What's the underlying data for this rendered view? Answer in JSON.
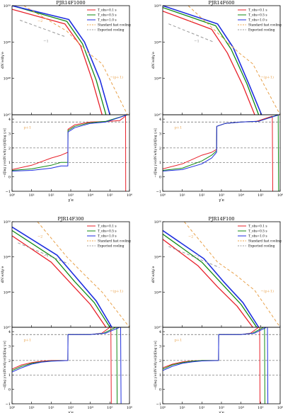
{
  "figure": {
    "tick_labels": {
      "upper_y": [
        "10⁵⁰",
        "10⁴⁹",
        "10⁴⁸",
        "10⁴⁷"
      ],
      "lower_y": [
        "4",
        "3",
        "2",
        "1",
        "0",
        "−1"
      ],
      "x": [
        "10⁰",
        "10¹",
        "10²",
        "10³",
        "10⁴",
        "10⁵",
        "10⁶"
      ]
    },
    "legend": [
      {
        "label": "T_obs=0.1 s",
        "color": "#e8202a",
        "style": "solid"
      },
      {
        "label": "T_obs=0.5 s",
        "color": "#138a13",
        "style": "solid"
      },
      {
        "label": "T_obs=1.0 s",
        "color": "#1f2fe0",
        "style": "solid"
      },
      {
        "label": "Standard fast cooling",
        "color": "#e8a14a",
        "style": "dashed"
      },
      {
        "label": "Expected cooling",
        "color": "#999999",
        "style": "dashed"
      }
    ],
    "panels": [
      {
        "title": "PJR14F1000",
        "legend_visible": true,
        "ann_upper": [
          "−2",
          "−1",
          "−(p+1)"
        ],
        "ann_lower": [
          "p+1"
        ]
      },
      {
        "title": "PJR14F600",
        "legend_visible": true,
        "ann_upper": [
          "−2",
          "−1",
          "−(p+1)"
        ],
        "ann_lower": [
          "p+1"
        ]
      },
      {
        "title": "PJR14F300",
        "legend_visible": true,
        "ann_upper": [
          "−2",
          "−1",
          "−(p+1)"
        ],
        "ann_lower": [
          "p+1"
        ]
      },
      {
        "title": "PJR14F100",
        "legend_visible": true,
        "ann_upper": [
          "−2",
          "−1",
          "−(p+1)"
        ],
        "ann_lower": [
          "p+1"
        ]
      }
    ]
  },
  "chart_data": [
    {
      "type": "line",
      "panel": "PJR14F1000",
      "upper": {
        "ylabel": "dN′e/dγ′e",
        "yscale": "log",
        "ylim_log10": [
          47,
          50
        ],
        "series": [
          {
            "name": "T_obs=0.1 s",
            "color": "#e8202a",
            "dash": "",
            "width": 1.3,
            "x": [
              0,
              2.7,
              3.5,
              4.1,
              4.6
            ],
            "y": [
              49.9,
              49.5,
              48.9,
              47.95,
              47
            ]
          },
          {
            "name": "T_obs=0.5 s",
            "color": "#138a13",
            "dash": "",
            "width": 1.3,
            "x": [
              0,
              2.8,
              3.6,
              4.3,
              4.8
            ],
            "y": [
              50,
              49.57,
              48.95,
              47.95,
              47
            ]
          },
          {
            "name": "T_obs=1.0 s",
            "color": "#1f2fe0",
            "dash": "",
            "width": 1.6,
            "x": [
              0,
              2.9,
              3.7,
              4.5,
              5.0
            ],
            "y": [
              50,
              49.62,
              49.0,
              47.95,
              47
            ]
          },
          {
            "name": "Standard fast cooling",
            "color": "#e8a14a",
            "dash": "4,3",
            "width": 1,
            "x": [
              0.6,
              2.8,
              3.8,
              4.6,
              5.9
            ],
            "y": [
              50,
              49.3,
              48.75,
              48.4,
              47
            ]
          },
          {
            "name": "Expected cooling",
            "color": "#999999",
            "dash": "4,3",
            "width": 1,
            "x": [
              0.4,
              2.7
            ],
            "y": [
              49.6,
              49.15
            ]
          }
        ]
      },
      "lower": {
        "ylabel": "−d[log γ′e(dN′e/dγ′e)]/d[log γ′e]",
        "xlabel": "γ′e",
        "ylim": [
          -1,
          4.3
        ],
        "hlines": [
          3.8,
          2.0,
          1.0
        ],
        "series": [
          {
            "name": "T_obs=0.1 s",
            "color": "#e8202a",
            "dash": "",
            "width": 1,
            "x": [
              0,
              1,
              2,
              2.5,
              2.85,
              2.86,
              3.2,
              4,
              4.7,
              5.5,
              5.8,
              5.81
            ],
            "y": [
              0.5,
              0.8,
              1.3,
              1.5,
              1.7,
              3.3,
              3.6,
              3.8,
              3.83,
              3.9,
              4.2,
              -1
            ]
          },
          {
            "name": "T_obs=0.5 s",
            "color": "#138a13",
            "dash": "",
            "width": 1,
            "x": [
              0,
              1,
              2,
              2.5,
              2.85,
              2.86,
              3.2,
              4,
              4.8,
              5.9,
              5.95
            ],
            "y": [
              0.45,
              0.55,
              0.8,
              1.0,
              1.0,
              3.2,
              3.5,
              3.75,
              3.85,
              4.3,
              4.3
            ]
          },
          {
            "name": "T_obs=1.0 s",
            "color": "#1f2fe0",
            "dash": "",
            "width": 1,
            "x": [
              0,
              1,
              2,
              2.5,
              2.85,
              2.86,
              3.2,
              4,
              4.8,
              5.9,
              5.95
            ],
            "y": [
              0.4,
              0.45,
              0.6,
              0.75,
              0.75,
              3.1,
              3.4,
              3.7,
              3.8,
              4.3,
              4.3
            ]
          }
        ]
      }
    },
    {
      "type": "line",
      "panel": "PJR14F600",
      "upper": {
        "ylabel": "dN′e/dγ′e",
        "yscale": "log",
        "ylim_log10": [
          47,
          50
        ],
        "series": [
          {
            "name": "T_obs=0.1 s",
            "color": "#e8202a",
            "dash": "",
            "width": 1.3,
            "x": [
              0,
              2.5,
              3.3,
              4.1,
              4.7
            ],
            "y": [
              49.85,
              49.35,
              48.7,
              47.8,
              47
            ]
          },
          {
            "name": "T_obs=0.5 s",
            "color": "#138a13",
            "dash": "",
            "width": 1.3,
            "x": [
              0,
              2.7,
              3.5,
              4.3,
              4.9
            ],
            "y": [
              49.95,
              49.45,
              48.8,
              47.85,
              47
            ]
          },
          {
            "name": "T_obs=1.0 s",
            "color": "#1f2fe0",
            "dash": "",
            "width": 1.6,
            "x": [
              0,
              2.8,
              3.6,
              4.4,
              5.05
            ],
            "y": [
              50,
              49.5,
              48.85,
              47.85,
              47
            ]
          },
          {
            "name": "Standard fast cooling",
            "color": "#e8a14a",
            "dash": "4,3",
            "width": 1,
            "x": [
              1.3,
              2.8,
              3.9,
              4.6,
              6.0
            ],
            "y": [
              50,
              49.25,
              48.7,
              48.4,
              47
            ]
          },
          {
            "name": "Expected cooling",
            "color": "#999999",
            "dash": "4,3",
            "width": 1,
            "x": [
              0.3,
              2.6
            ],
            "y": [
              49.5,
              49.0
            ]
          }
        ]
      },
      "lower": {
        "ylabel": "−d[log γ′e(dN′e/dγ′e)]/d[log γ′e]",
        "xlabel": "γ′e",
        "ylim": [
          -1,
          4.3
        ],
        "hlines": [
          3.8,
          2.0,
          1.0
        ],
        "series": [
          {
            "name": "T_obs=0.1 s",
            "color": "#e8202a",
            "dash": "",
            "width": 1,
            "x": [
              0,
              1,
              2,
              2.5,
              2.75,
              2.76,
              3.2,
              4,
              4.8,
              5.6,
              5.62
            ],
            "y": [
              0.55,
              0.9,
              1.5,
              1.7,
              1.9,
              3.5,
              3.7,
              3.8,
              3.85,
              4.2,
              -1
            ]
          },
          {
            "name": "T_obs=0.5 s",
            "color": "#138a13",
            "dash": "",
            "width": 1,
            "x": [
              0,
              1,
              2,
              2.5,
              2.75,
              2.76,
              3.2,
              4,
              4.9,
              5.9,
              5.92
            ],
            "y": [
              0.45,
              0.6,
              1.1,
              1.5,
              1.8,
              3.5,
              3.7,
              3.8,
              3.85,
              4.3,
              -1
            ]
          },
          {
            "name": "T_obs=1.0 s",
            "color": "#1f2fe0",
            "dash": "",
            "width": 1,
            "x": [
              0,
              1,
              2,
              2.5,
              2.75,
              2.76,
              3.2,
              4,
              4.9,
              5.95
            ],
            "y": [
              0.4,
              0.5,
              0.9,
              1.3,
              1.7,
              3.5,
              3.7,
              3.8,
              3.85,
              4.3
            ]
          }
        ]
      }
    },
    {
      "type": "line",
      "panel": "PJR14F300",
      "upper": {
        "ylabel": "dN′e/dγ′e",
        "yscale": "log",
        "ylim_log10": [
          47,
          50
        ],
        "series": [
          {
            "name": "T_obs=0.1 s",
            "color": "#e8202a",
            "dash": "",
            "width": 1.3,
            "x": [
              0,
              2.0,
              3.0,
              4.0,
              4.8
            ],
            "y": [
              49.6,
              48.85,
              48.25,
              47.65,
              47
            ]
          },
          {
            "name": "T_obs=0.5 s",
            "color": "#138a13",
            "dash": "",
            "width": 1.3,
            "x": [
              0,
              2.2,
              3.2,
              4.2,
              5.0
            ],
            "y": [
              49.75,
              48.95,
              48.3,
              47.7,
              47
            ]
          },
          {
            "name": "T_obs=1.0 s",
            "color": "#1f2fe0",
            "dash": "",
            "width": 1.6,
            "x": [
              0,
              2.3,
              3.3,
              4.3,
              5.1
            ],
            "y": [
              49.85,
              49.05,
              48.4,
              47.75,
              47
            ]
          },
          {
            "name": "Standard fast cooling",
            "color": "#e8a14a",
            "dash": "4,3",
            "width": 1,
            "x": [
              1.3,
              2.8,
              3.6,
              4.6,
              6.0
            ],
            "y": [
              50,
              49.0,
              48.55,
              48.0,
              47
            ]
          },
          {
            "name": "Expected cooling",
            "color": "#999999",
            "dash": "4,3",
            "width": 1,
            "x": [
              0.3,
              2.9
            ],
            "y": [
              49.4,
              48.8
            ]
          }
        ]
      },
      "lower": {
        "ylabel": "−d[log γ′e(dN′e/dγ′e)]/d[log γ′e]",
        "xlabel": "γ′e",
        "ylim": [
          -1,
          4.3
        ],
        "hlines": [
          3.8,
          2.0,
          1.0
        ],
        "series": [
          {
            "name": "T_obs=0.1 s",
            "color": "#e8202a",
            "dash": "",
            "width": 1,
            "x": [
              0,
              0.5,
              1,
              1.5,
              2.0,
              2.85,
              2.86,
              4.0,
              4.6,
              5.0,
              5.05,
              5.07
            ],
            "y": [
              1.4,
              1.7,
              1.85,
              1.95,
              2.0,
              2.0,
              3.8,
              3.8,
              3.9,
              4.3,
              4.3,
              -1
            ]
          },
          {
            "name": "T_obs=0.5 s",
            "color": "#138a13",
            "dash": "",
            "width": 1,
            "x": [
              0,
              0.5,
              1,
              1.5,
              2.0,
              2.85,
              2.86,
              4.0,
              4.7,
              5.3,
              5.35,
              5.37
            ],
            "y": [
              1.3,
              1.6,
              1.8,
              1.9,
              1.97,
              2.0,
              3.8,
              3.8,
              3.9,
              4.3,
              4.3,
              -1
            ]
          },
          {
            "name": "T_obs=1.0 s",
            "color": "#1f2fe0",
            "dash": "",
            "width": 1,
            "x": [
              0,
              0.5,
              1,
              1.5,
              2.0,
              2.85,
              2.86,
              4.0,
              4.8,
              5.5,
              5.55,
              5.57
            ],
            "y": [
              1.2,
              1.5,
              1.75,
              1.88,
              1.95,
              2.0,
              3.8,
              3.8,
              3.9,
              4.3,
              4.3,
              -1
            ]
          }
        ]
      }
    },
    {
      "type": "line",
      "panel": "PJR14F100",
      "upper": {
        "ylabel": "dN′e/dγ′e",
        "yscale": "log",
        "ylim_log10": [
          47,
          50
        ],
        "series": [
          {
            "name": "T_obs=0.1 s",
            "color": "#e8202a",
            "dash": "",
            "width": 1.3,
            "x": [
              0,
              1.8,
              2.8,
              3.8,
              4.6
            ],
            "y": [
              49.5,
              48.75,
              48.15,
              47.6,
              47
            ]
          },
          {
            "name": "T_obs=0.5 s",
            "color": "#138a13",
            "dash": "",
            "width": 1.3,
            "x": [
              0,
              2.0,
              3.0,
              4.0,
              4.8
            ],
            "y": [
              49.65,
              48.85,
              48.25,
              47.65,
              47
            ]
          },
          {
            "name": "T_obs=1.0 s",
            "color": "#1f2fe0",
            "dash": "",
            "width": 1.6,
            "x": [
              0,
              2.1,
              3.1,
              4.1,
              4.9
            ],
            "y": [
              49.75,
              48.95,
              48.3,
              47.7,
              47
            ]
          },
          {
            "name": "Standard fast cooling",
            "color": "#e8a14a",
            "dash": "4,3",
            "width": 1,
            "x": [
              1.1,
              2.8,
              3.7,
              4.7,
              6.0
            ],
            "y": [
              50,
              48.85,
              48.5,
              48.05,
              47
            ]
          },
          {
            "name": "Expected cooling",
            "color": "#999999",
            "dash": "4,3",
            "width": 1,
            "x": [
              0.3,
              2.9
            ],
            "y": [
              49.3,
              48.7
            ]
          }
        ]
      },
      "lower": {
        "ylabel": "−d[log γ′e(dN′e/dγ′e)]/d[log γ′e]",
        "xlabel": "γ′e",
        "ylim": [
          -1,
          4.3
        ],
        "hlines": [
          3.8,
          2.0,
          1.0
        ],
        "series": [
          {
            "name": "T_obs=0.1 s",
            "color": "#e8202a",
            "dash": "",
            "width": 1,
            "x": [
              0,
              0.5,
              1,
              1.5,
              2.0,
              2.85,
              2.86,
              4.0,
              4.5,
              4.9,
              4.95,
              4.97
            ],
            "y": [
              1.5,
              1.75,
              1.9,
              1.97,
              2.0,
              2.0,
              3.8,
              3.8,
              3.9,
              4.3,
              4.3,
              -1
            ]
          },
          {
            "name": "T_obs=0.5 s",
            "color": "#138a13",
            "dash": "",
            "width": 1,
            "x": [
              0,
              0.5,
              1,
              1.5,
              2.0,
              2.85,
              2.86,
              4.0,
              4.6,
              5.15,
              5.2,
              5.22
            ],
            "y": [
              1.4,
              1.7,
              1.85,
              1.95,
              2.0,
              2.0,
              3.8,
              3.8,
              3.9,
              4.3,
              4.3,
              -1
            ]
          },
          {
            "name": "T_obs=1.0 s",
            "color": "#1f2fe0",
            "dash": "",
            "width": 1,
            "x": [
              0,
              0.5,
              1,
              1.5,
              2.0,
              2.85,
              2.86,
              4.0,
              4.7,
              5.3,
              5.35,
              5.37
            ],
            "y": [
              1.3,
              1.6,
              1.8,
              1.9,
              1.97,
              2.0,
              3.8,
              3.8,
              3.9,
              4.3,
              4.3,
              -1
            ]
          }
        ]
      }
    }
  ]
}
